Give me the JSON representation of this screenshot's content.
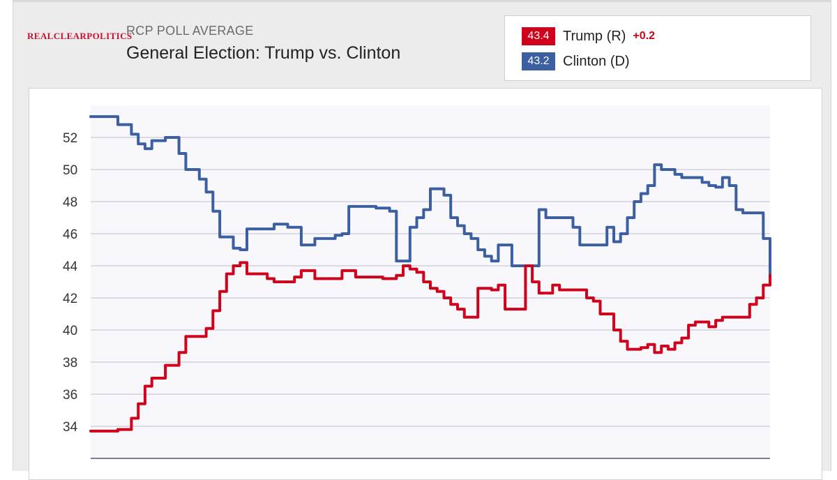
{
  "header": {
    "logo_text": "REALCLEARPOLITICS",
    "subtitle": "RCP POLL AVERAGE",
    "title": "General Election: Trump vs. Clinton"
  },
  "legend": {
    "trump": {
      "value": "43.4",
      "name": "Trump (R)",
      "change": "+0.2",
      "color": "#d0021b"
    },
    "clinton": {
      "value": "43.2",
      "name": "Clinton (D)",
      "color": "#3c5fa1"
    }
  },
  "chart_data": {
    "type": "line",
    "title": "General Election: Trump vs. Clinton",
    "xlabel": "",
    "ylabel": "",
    "ylim": [
      32,
      54
    ],
    "yticks": [
      34,
      36,
      38,
      40,
      42,
      44,
      46,
      48,
      50,
      52
    ],
    "grid": true,
    "series": [
      {
        "name": "Clinton (D)",
        "color": "#3c5fa1",
        "x": [
          0,
          3,
          4,
          5,
          6,
          7,
          8,
          9,
          10,
          11,
          12,
          13,
          14,
          15,
          16,
          17,
          18,
          19,
          20,
          21,
          22,
          23,
          24,
          25,
          26,
          27,
          28,
          29,
          30,
          31,
          32,
          33,
          34,
          35,
          36,
          37,
          38,
          39,
          40,
          41,
          42,
          43,
          44,
          45,
          46,
          47,
          48,
          49,
          50,
          51,
          52,
          53,
          54,
          55,
          56,
          57,
          58,
          59,
          60,
          61,
          62,
          63,
          64,
          65,
          66,
          67,
          68,
          69,
          70,
          71,
          72,
          73,
          74,
          75,
          76,
          77,
          78,
          79,
          80,
          81,
          82,
          83,
          84,
          85,
          86,
          87,
          88,
          89,
          90,
          91,
          92,
          93,
          94,
          95,
          96,
          97,
          98,
          99,
          100
        ],
        "values": [
          53.3,
          53.3,
          52.8,
          52.8,
          52.2,
          51.6,
          51.3,
          51.8,
          51.8,
          52.0,
          52.0,
          51.0,
          50.0,
          50.0,
          49.4,
          48.6,
          47.4,
          45.8,
          45.8,
          45.1,
          45.0,
          46.3,
          46.3,
          46.3,
          46.3,
          46.6,
          46.6,
          46.4,
          46.4,
          45.3,
          45.3,
          45.7,
          45.7,
          45.7,
          45.9,
          46.0,
          47.7,
          47.7,
          47.7,
          47.7,
          47.6,
          47.6,
          47.4,
          44.3,
          44.3,
          46.4,
          47.0,
          47.5,
          48.8,
          48.8,
          48.4,
          47.0,
          46.5,
          46.0,
          45.7,
          45.0,
          44.6,
          44.3,
          45.3,
          45.3,
          44.0,
          44.0,
          44.0,
          44.0,
          47.5,
          47.0,
          47.0,
          47.0,
          47.0,
          46.4,
          45.3,
          45.3,
          45.3,
          45.3,
          46.4,
          45.5,
          46.0,
          47.0,
          48.0,
          48.5,
          49.0,
          50.3,
          50.0,
          50.0,
          49.7,
          49.5,
          49.5,
          49.5,
          49.2,
          49.0,
          48.9,
          49.5,
          49.0,
          47.5,
          47.3,
          47.3,
          47.3,
          45.7,
          43.2
        ]
      },
      {
        "name": "Trump (R)",
        "color": "#d0021b",
        "x": [
          0,
          3,
          4,
          5,
          6,
          7,
          8,
          9,
          10,
          11,
          12,
          13,
          14,
          15,
          16,
          17,
          18,
          19,
          20,
          21,
          22,
          23,
          24,
          25,
          26,
          27,
          28,
          29,
          30,
          31,
          32,
          33,
          34,
          35,
          36,
          37,
          38,
          39,
          40,
          41,
          42,
          43,
          44,
          45,
          46,
          47,
          48,
          49,
          50,
          51,
          52,
          53,
          54,
          55,
          56,
          57,
          58,
          59,
          60,
          61,
          62,
          63,
          64,
          65,
          66,
          67,
          68,
          69,
          70,
          71,
          72,
          73,
          74,
          75,
          76,
          77,
          78,
          79,
          80,
          81,
          82,
          83,
          84,
          85,
          86,
          87,
          88,
          89,
          90,
          91,
          92,
          93,
          94,
          95,
          96,
          97,
          98,
          99,
          100
        ],
        "values": [
          33.7,
          33.7,
          33.8,
          33.8,
          34.5,
          35.4,
          36.5,
          37.0,
          37.0,
          37.8,
          37.8,
          38.6,
          39.6,
          39.6,
          39.6,
          40.1,
          41.2,
          42.4,
          43.5,
          44.0,
          44.2,
          43.5,
          43.5,
          43.5,
          43.2,
          43.0,
          43.0,
          43.0,
          43.3,
          43.7,
          43.7,
          43.2,
          43.2,
          43.2,
          43.2,
          43.7,
          43.7,
          43.3,
          43.3,
          43.3,
          43.3,
          43.2,
          43.2,
          43.4,
          44.0,
          43.8,
          43.6,
          43.0,
          42.6,
          42.4,
          42.0,
          41.6,
          41.3,
          40.8,
          40.8,
          42.6,
          42.6,
          42.5,
          42.8,
          41.3,
          41.3,
          41.3,
          44.0,
          43.0,
          42.3,
          42.3,
          42.8,
          42.5,
          42.5,
          42.5,
          42.5,
          42.0,
          41.8,
          41.0,
          41.0,
          40.0,
          39.3,
          38.8,
          38.8,
          38.9,
          39.1,
          38.6,
          39.0,
          38.8,
          39.2,
          39.5,
          40.3,
          40.5,
          40.5,
          40.2,
          40.6,
          40.8,
          40.8,
          40.8,
          40.8,
          41.6,
          42.0,
          42.8,
          43.4
        ]
      }
    ]
  }
}
